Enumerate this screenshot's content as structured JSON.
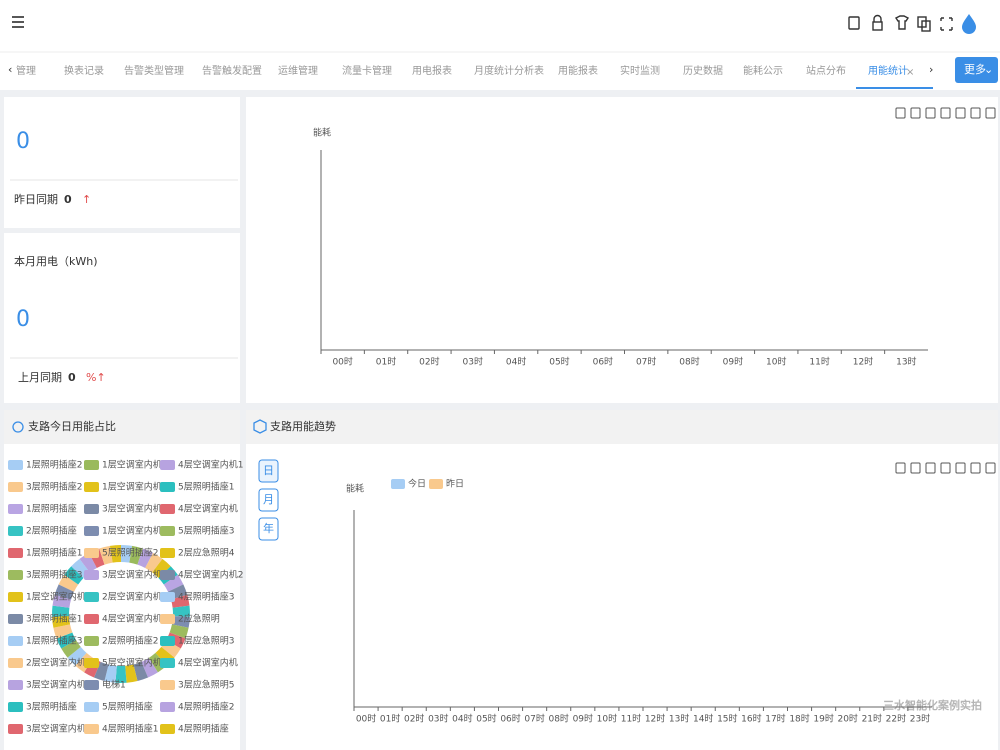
{
  "header": {
    "tabs": [
      "管理",
      "换表记录",
      "告警类型管理",
      "告警触发配置",
      "运维管理",
      "流量卡管理",
      "用电报表",
      "月度统计分析表",
      "用能报表",
      "实时监测",
      "历史数据",
      "能耗公示",
      "站点分布",
      "用能统计"
    ],
    "active_tab": 13,
    "close_icon": "×",
    "more_button": "更多"
  },
  "cards": [
    {
      "value": 0,
      "compare_label": "昨日同期",
      "compare_value": 0,
      "trend": "↑"
    },
    {
      "title": "本月用电（kWh)",
      "value": 0,
      "compare_label": "上月同期",
      "compare_value": 0,
      "trend": "%↑"
    }
  ],
  "top_chart": {
    "type": "line",
    "y_label": "能耗",
    "categories": [
      "00时",
      "01时",
      "02时",
      "03时",
      "04时",
      "05时",
      "06时",
      "07时",
      "08时",
      "09时",
      "10时",
      "11时",
      "12时",
      "13时"
    ]
  },
  "branch_share": {
    "type": "pie",
    "title": "支路今日用能占比",
    "categories": [
      "1层照明插座2",
      "1层空调室内机",
      "4层空调室内机1",
      "3层照明插座2",
      "1层空调室内机",
      "5层照明插座1",
      "1层照明插座",
      "3层空调室内机1",
      "4层空调室内机",
      "2层照明插座",
      "1层空调室内机2",
      "5层照明插座3",
      "1层照明插座1",
      "5层照明插座2",
      "2层应急照明4",
      "3层照明插座3",
      "3层空调室内机1",
      "4层空调室内机2",
      "1层空调室内机1",
      "2层空调室内机1",
      "4层照明插座3",
      "3层照明插座1",
      "4层空调室内机3",
      "2应急照明",
      "1层照明插座3",
      "2层照明插座2",
      "1层应急照明3",
      "2层空调室内机2",
      "5层空调室内机3",
      "4层空调室内机",
      "3层空调室内机",
      "电梯1",
      "3层应急照明5",
      "3层照明插座",
      "5层照明插座",
      "4层照明插座2",
      "3层空调室内机3",
      "4层照明插座1",
      "4层照明插座"
    ],
    "values": [
      1,
      1,
      1,
      1,
      1,
      1,
      1,
      1,
      1,
      1,
      1,
      1,
      1,
      1,
      1,
      1,
      1,
      1,
      1,
      1,
      1,
      1,
      1,
      1,
      1,
      1,
      1,
      1,
      1,
      1,
      1,
      1,
      1,
      1,
      1,
      1,
      1,
      1,
      1
    ],
    "colors": [
      "#a6cdf4",
      "#9aba5c",
      "#b7a3e0",
      "#f9c98d",
      "#e2c21a",
      "#2bbfbf",
      "#b9a5e3",
      "#7b8aa6",
      "#e0676f",
      "#36c3c3",
      "#7d8db0",
      "#9dbb5f",
      "#e0676f",
      "#f9c98d",
      "#e2c21a",
      "#9dbb5f",
      "#b7a3e0",
      "#7b8aa6",
      "#e2c21a",
      "#36c3c3",
      "#a6cdf4",
      "#7b8aa6",
      "#e0676f",
      "#f9c98d",
      "#a6cdf4",
      "#9dbb5f",
      "#2bbfbf",
      "#f9c98d",
      "#e2c21a",
      "#36c3c3",
      "#b7a3e0",
      "#7d8db0",
      "#f9c98d",
      "#2bbfbf",
      "#a6cdf4",
      "#b7a3e0",
      "#e0676f",
      "#f9c98d",
      "#e2c21a"
    ]
  },
  "branch_trend": {
    "type": "line",
    "title": "支路用能趋势",
    "period_buttons": [
      "日",
      "月",
      "年"
    ],
    "y_label": "能耗",
    "series": [
      {
        "name": "今日",
        "color": "#a6cdf4"
      },
      {
        "name": "昨日",
        "color": "#f9c98d"
      }
    ],
    "categories": [
      "00时",
      "01时",
      "02时",
      "03时",
      "04时",
      "05时",
      "06时",
      "07时",
      "08时",
      "09时",
      "10时",
      "11时",
      "12时",
      "13时",
      "14时",
      "15时",
      "16时",
      "17时",
      "18时",
      "19时",
      "20时",
      "21时",
      "22时",
      "23时"
    ]
  },
  "watermark": "三水智能化案例实拍"
}
